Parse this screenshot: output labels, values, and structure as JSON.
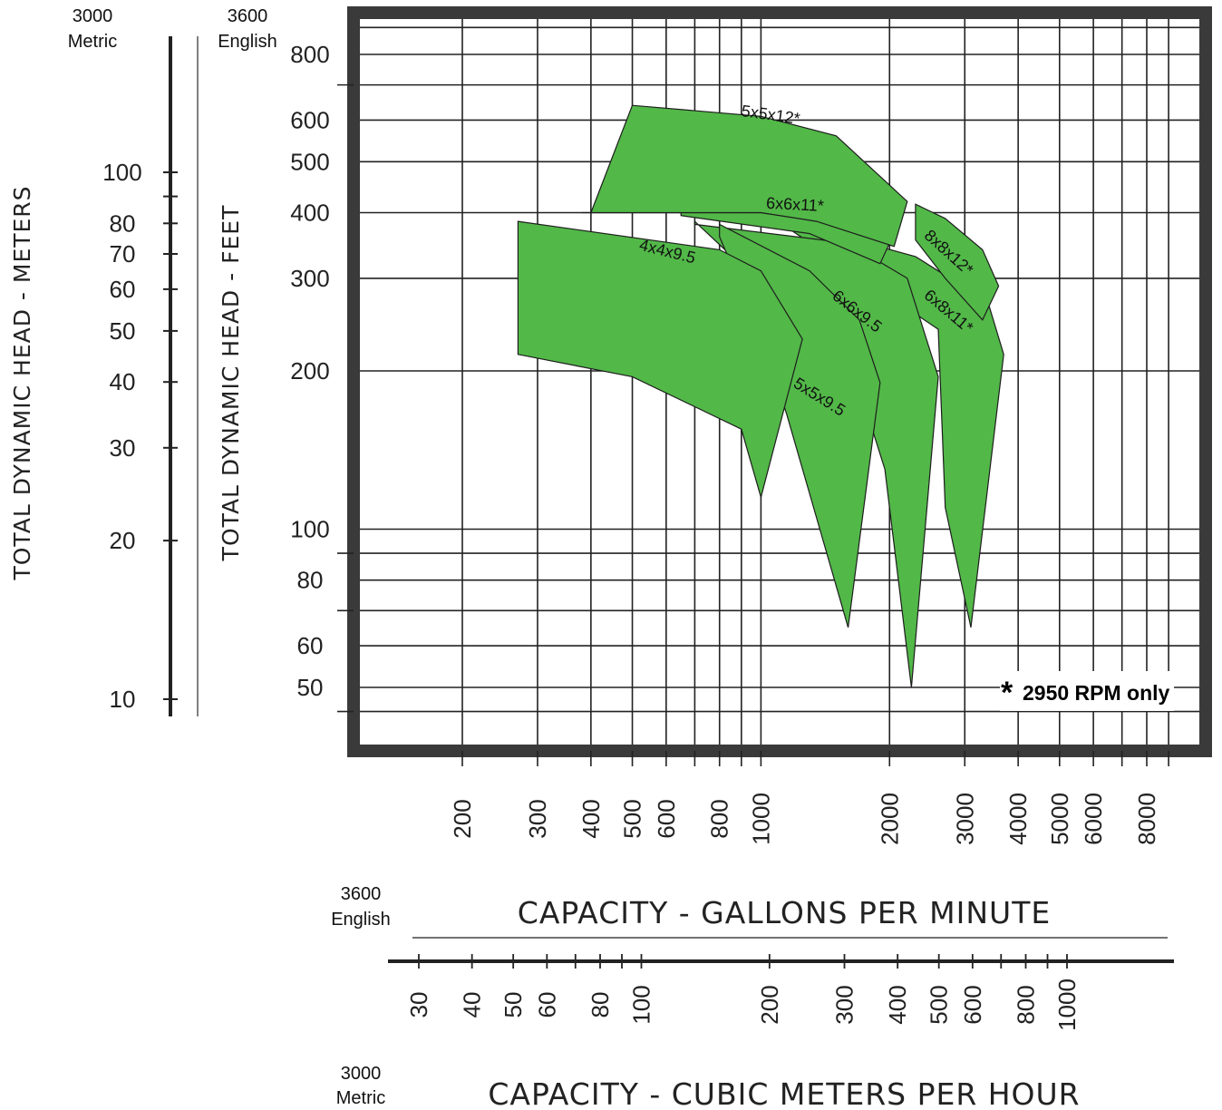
{
  "chart_data": {
    "type": "area",
    "x_scale": "log",
    "y_scale": "log",
    "grid": true,
    "x_axis_primary": {
      "title": "CAPACITY - GALLONS PER MINUTE",
      "unit_label_top": "3600",
      "unit_label_bottom": "English",
      "ticks": [
        "200",
        "300",
        "400",
        "500",
        "600",
        "800",
        "1000",
        "2000",
        "3000",
        "4000",
        "5000",
        "6000",
        "8000"
      ],
      "tick_values": [
        200,
        300,
        400,
        500,
        600,
        800,
        1000,
        2000,
        3000,
        4000,
        5000,
        6000,
        8000
      ]
    },
    "x_axis_secondary": {
      "title": "CAPACITY - CUBIC METERS PER HOUR",
      "unit_label_top": "3000",
      "unit_label_bottom": "Metric",
      "ticks": [
        "30",
        "40",
        "50",
        "60",
        "80",
        "100",
        "200",
        "300",
        "400",
        "500",
        "600",
        "800",
        "1000"
      ],
      "tick_values": [
        30,
        40,
        50,
        60,
        80,
        100,
        200,
        300,
        400,
        500,
        600,
        800,
        1000
      ]
    },
    "y_axis_primary": {
      "title": "TOTAL DYNAMIC HEAD - FEET",
      "unit_label_top": "3600",
      "unit_label_bottom": "English",
      "ticks": [
        "50",
        "60",
        "80",
        "100",
        "200",
        "300",
        "400",
        "500",
        "600",
        "800"
      ],
      "tick_values": [
        50,
        60,
        80,
        100,
        200,
        300,
        400,
        500,
        600,
        800
      ]
    },
    "y_axis_secondary": {
      "title": "TOTAL DYNAMIC HEAD - METERS",
      "unit_label_top": "3000",
      "unit_label_bottom": "Metric",
      "ticks": [
        "10",
        "20",
        "30",
        "40",
        "50",
        "60",
        "70",
        "80",
        "100"
      ],
      "tick_values": [
        10,
        20,
        30,
        40,
        50,
        60,
        70,
        80,
        100
      ]
    },
    "series": [
      {
        "name": "4x4x9.5",
        "x": [
          270,
          800,
          1000,
          1250,
          1000,
          900,
          500,
          270
        ],
        "y": [
          385,
          340,
          310,
          230,
          115,
          155,
          195,
          215
        ]
      },
      {
        "name": "5x5x9.5",
        "x": [
          800,
          1300,
          1700,
          1900,
          1600,
          1150,
          1000,
          800
        ],
        "y": [
          380,
          310,
          250,
          190,
          65,
          165,
          235,
          360
        ]
      },
      {
        "name": "6x6x9.5",
        "x": [
          700,
          1600,
          2200,
          2600,
          2250,
          1950,
          1650,
          700
        ],
        "y": [
          380,
          350,
          300,
          195,
          50,
          130,
          200,
          385
        ]
      },
      {
        "name": "6x8x11*",
        "x": [
          1150,
          2300,
          3400,
          3700,
          3100,
          2700,
          2600,
          1150
        ],
        "y": [
          385,
          330,
          270,
          215,
          65,
          110,
          240,
          375
        ]
      },
      {
        "name": "8x8x12*",
        "x": [
          2300,
          2700,
          3300,
          3600,
          3300,
          2700,
          2300
        ],
        "y": [
          415,
          390,
          340,
          290,
          250,
          300,
          355
        ]
      },
      {
        "name": "6x6x11*",
        "x": [
          650,
          1000,
          1400,
          2000,
          1900,
          1300,
          650
        ],
        "y": [
          400,
          400,
          385,
          350,
          320,
          365,
          395
        ]
      },
      {
        "name": "5x5x12*",
        "x": [
          400,
          500,
          1000,
          1500,
          2200,
          2050,
          1350,
          1000,
          380
        ],
        "y": [
          400,
          640,
          610,
          560,
          420,
          345,
          385,
          400,
          400
        ]
      }
    ],
    "annotation": {
      "marker": "*",
      "text": "2950 RPM only"
    }
  }
}
